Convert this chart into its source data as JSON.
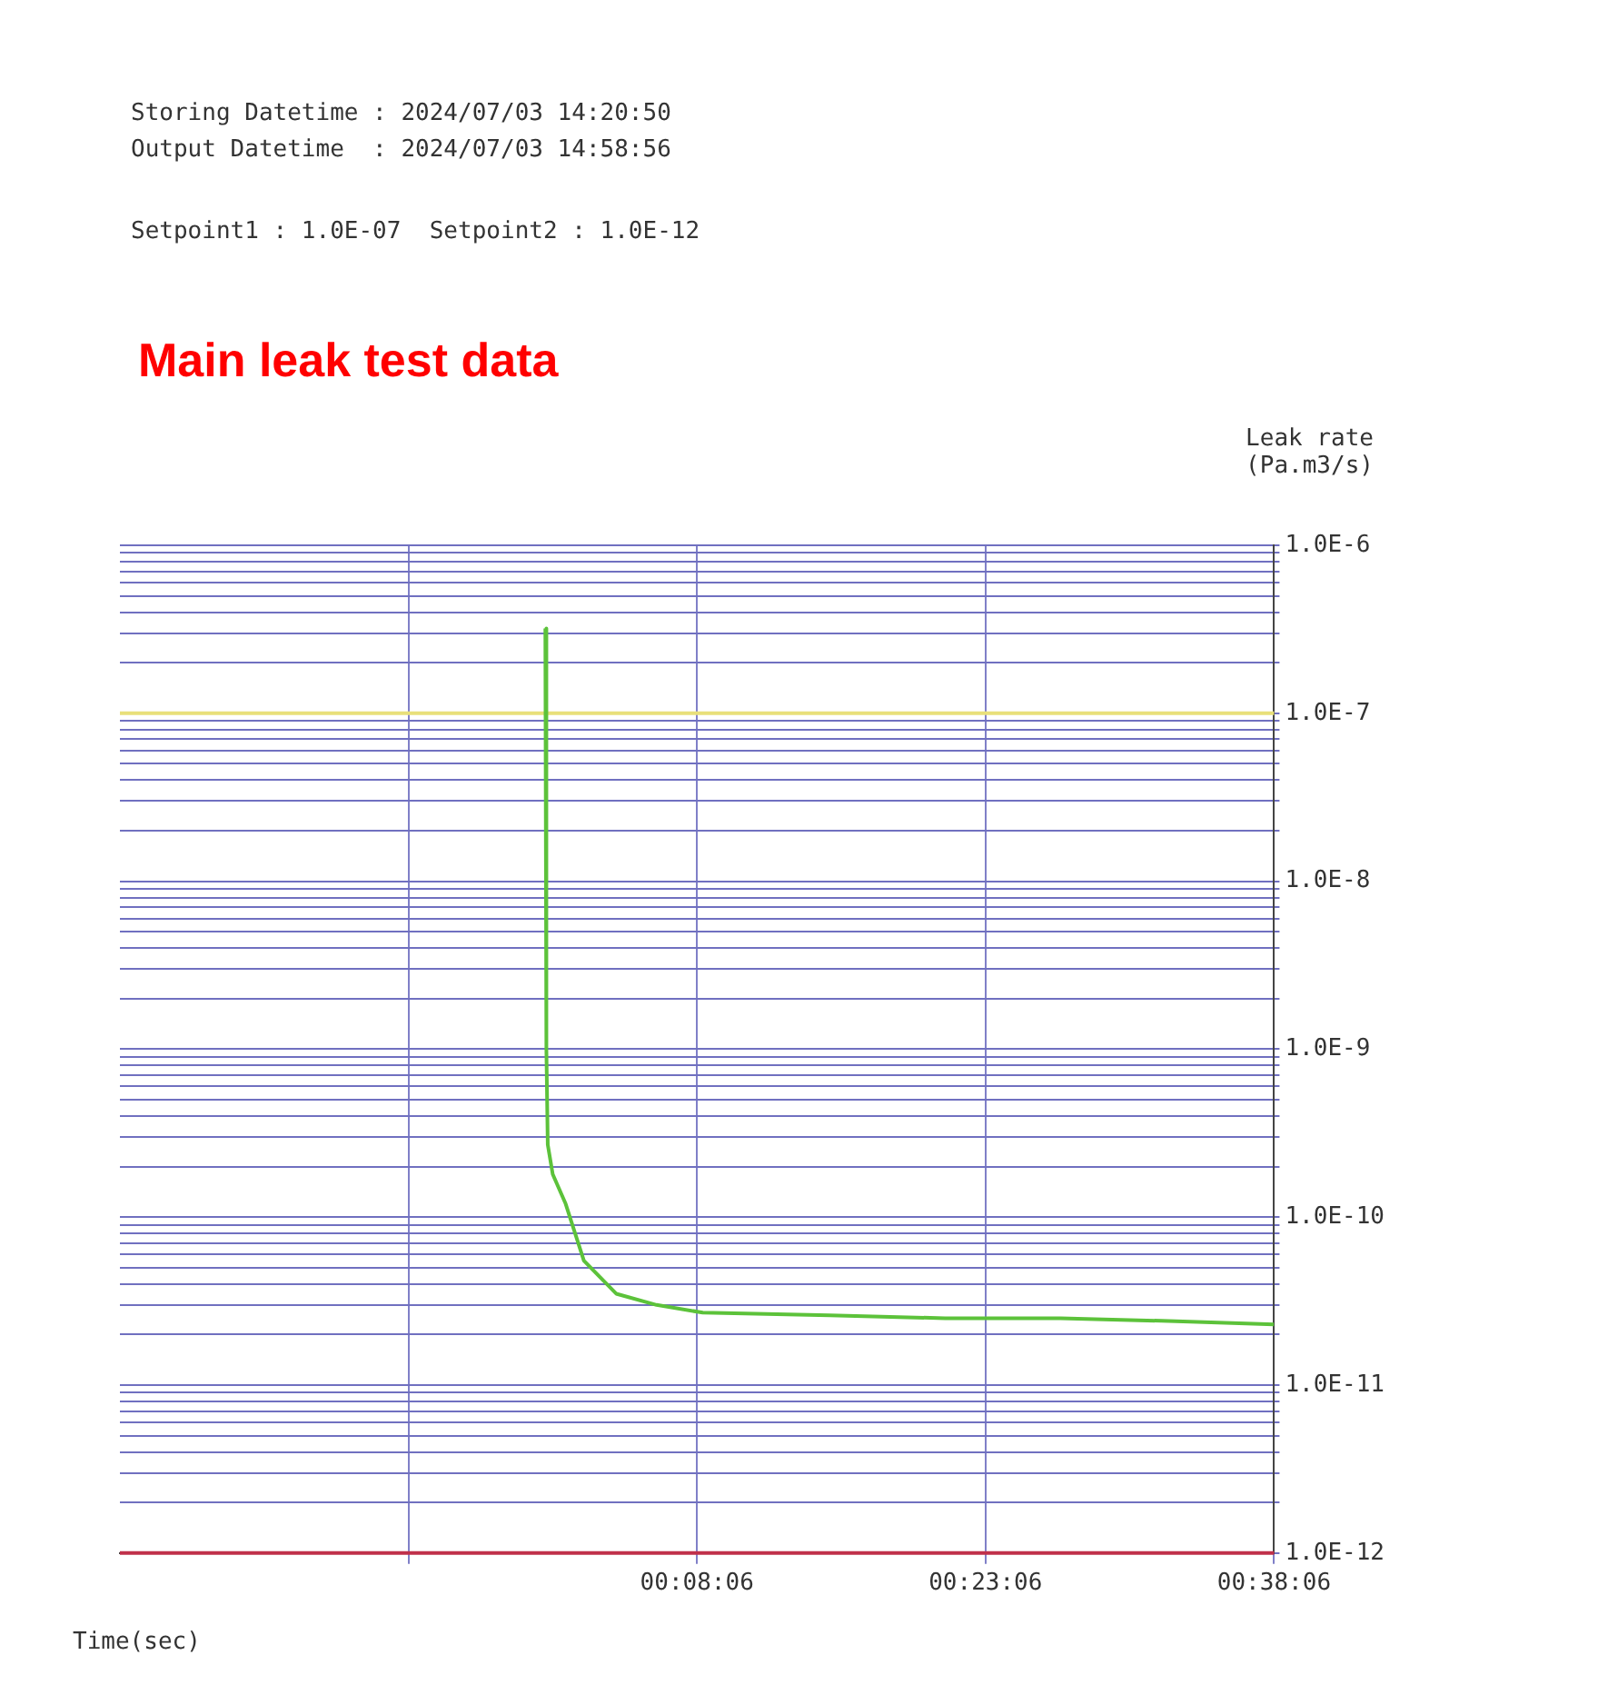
{
  "chart_data": {
    "type": "line",
    "title": "Main leak test data",
    "xlabel": "Time(sec)",
    "ylabel": "Leak rate\n(Pa.m3/s)",
    "annotations": [
      "Storing Datetime : 2024/07/03 14:20:50",
      "Output Datetime  : 2024/07/03 14:58:56",
      "Setpoint1 : 1.0E-07  Setpoint2 : 1.0E-12"
    ],
    "x": [
      0.0036,
      0.0045,
      0.0057,
      0.01,
      0.0212,
      0.037,
      0.065,
      0.1,
      0.14,
      0.25,
      0.35,
      0.45,
      0.55,
      0.635
    ],
    "series": [
      {
        "color": "#5cc23a",
        "values": [
          3.2e-07,
          1e-09,
          2.7e-10,
          1.8e-10,
          1.2e-10,
          5.5e-11,
          3.5e-11,
          3e-11,
          2.7e-11,
          2.6e-11,
          2.5e-11,
          2.5e-11,
          2.4e-11,
          2.3e-11
        ]
      }
    ],
    "log": "y",
    "xlim": [
      -0.365,
      0.635
    ],
    "xticks": [
      {
        "value": -0.115,
        "label": null
      },
      {
        "value": 0.135,
        "label": "00:08:06"
      },
      {
        "value": 0.385,
        "label": "00:23:06"
      },
      {
        "value": 0.635,
        "label": "00:38:06"
      }
    ],
    "ylim": [
      1e-12,
      1e-06
    ],
    "yticks": [
      {
        "value": 1e-12,
        "label": "1.0E-12"
      },
      {
        "value": 2e-12,
        "label": null
      },
      {
        "value": 3e-12,
        "label": null
      },
      {
        "value": 4e-12,
        "label": null
      },
      {
        "value": 5e-12,
        "label": null
      },
      {
        "value": 6e-12,
        "label": null
      },
      {
        "value": 7e-12,
        "label": null
      },
      {
        "value": 8e-12,
        "label": null
      },
      {
        "value": 9e-12,
        "label": null
      },
      {
        "value": 1e-11,
        "label": "1.0E-11"
      },
      {
        "value": 2e-11,
        "label": null
      },
      {
        "value": 3e-11,
        "label": null
      },
      {
        "value": 4e-11,
        "label": null
      },
      {
        "value": 5e-11,
        "label": null
      },
      {
        "value": 6e-11,
        "label": null
      },
      {
        "value": 7e-11,
        "label": null
      },
      {
        "value": 8e-11,
        "label": null
      },
      {
        "value": 9e-11,
        "label": null
      },
      {
        "value": 1e-10,
        "label": "1.0E-10"
      },
      {
        "value": 2e-10,
        "label": null
      },
      {
        "value": 3e-10,
        "label": null
      },
      {
        "value": 4e-10,
        "label": null
      },
      {
        "value": 5e-10,
        "label": null
      },
      {
        "value": 6e-10,
        "label": null
      },
      {
        "value": 7e-10,
        "label": null
      },
      {
        "value": 8e-10,
        "label": null
      },
      {
        "value": 9e-10,
        "label": null
      },
      {
        "value": 1e-09,
        "label": "1.0E-9"
      },
      {
        "value": 2e-09,
        "label": null
      },
      {
        "value": 3e-09,
        "label": null
      },
      {
        "value": 4e-09,
        "label": null
      },
      {
        "value": 5e-09,
        "label": null
      },
      {
        "value": 6e-09,
        "label": null
      },
      {
        "value": 7e-09,
        "label": null
      },
      {
        "value": 8e-09,
        "label": null
      },
      {
        "value": 9e-09,
        "label": null
      },
      {
        "value": 1e-08,
        "label": "1.0E-8"
      },
      {
        "value": 2e-08,
        "label": null
      },
      {
        "value": 3e-08,
        "label": null
      },
      {
        "value": 4e-08,
        "label": null
      },
      {
        "value": 5e-08,
        "label": null
      },
      {
        "value": 6e-08,
        "label": null
      },
      {
        "value": 7e-08,
        "label": null
      },
      {
        "value": 8e-08,
        "label": null
      },
      {
        "value": 9e-08,
        "label": null
      },
      {
        "value": 1e-07,
        "label": "1.0E-7"
      },
      {
        "value": 2e-07,
        "label": null
      },
      {
        "value": 3e-07,
        "label": null
      },
      {
        "value": 4e-07,
        "label": null
      },
      {
        "value": 5e-07,
        "label": null
      },
      {
        "value": 6e-07,
        "label": null
      },
      {
        "value": 7e-07,
        "label": null
      },
      {
        "value": 8e-07,
        "label": null
      },
      {
        "value": 9e-07,
        "label": null
      },
      {
        "value": 1e-06,
        "label": "1.0E-6"
      }
    ],
    "ref_lines": [
      {
        "axis": "y",
        "value": 1e-07,
        "color": "#e8e07a"
      },
      {
        "axis": "y",
        "value": 1e-12,
        "color": "#c0304a"
      }
    ],
    "grid": true,
    "legend": false,
    "marker": "none",
    "line_style": "solid"
  }
}
